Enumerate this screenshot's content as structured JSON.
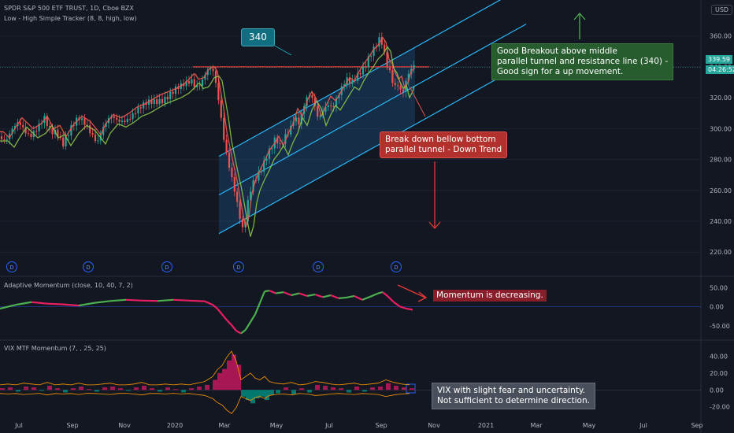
{
  "header": {
    "symbol_title": "SPDR S&P 500 ETF TRUST, 1D, Cboe BZX",
    "indicator": "Low - High Simple Tracker (8, 8, high, low)",
    "currency": "USD"
  },
  "chart_data": [
    {
      "type": "candlestick",
      "title": "SPDR S&P 500 ETF TRUST, 1D, Cboe BZX",
      "y_ticks": [
        220,
        240,
        260,
        280,
        300,
        320,
        340,
        360
      ],
      "ylim": [
        215,
        368
      ],
      "x_ticks": [
        "Jul",
        "Sep",
        "Nov",
        "2020",
        "Mar",
        "May",
        "Jul",
        "Sep",
        "Nov",
        "2021",
        "Mar",
        "May",
        "Jul",
        "Sep"
      ],
      "last_price": "339.59",
      "countdown": "04:26:52",
      "resistance_label": "340",
      "resistance_level": 340,
      "price_path": [
        [
          0,
          295
        ],
        [
          8,
          291
        ],
        [
          16,
          298
        ],
        [
          24,
          304
        ],
        [
          30,
          301
        ],
        [
          38,
          297
        ],
        [
          48,
          300
        ],
        [
          56,
          305
        ],
        [
          64,
          297
        ],
        [
          72,
          299
        ],
        [
          80,
          292
        ],
        [
          90,
          300
        ],
        [
          100,
          305
        ],
        [
          110,
          302
        ],
        [
          118,
          297
        ],
        [
          124,
          293
        ],
        [
          130,
          300
        ],
        [
          140,
          306
        ],
        [
          150,
          304
        ],
        [
          160,
          307
        ],
        [
          170,
          311
        ],
        [
          180,
          313
        ],
        [
          190,
          316
        ],
        [
          200,
          319
        ],
        [
          210,
          321
        ],
        [
          220,
          323
        ],
        [
          230,
          326
        ],
        [
          238,
          330
        ],
        [
          243,
          333
        ],
        [
          248,
          329
        ],
        [
          255,
          330
        ],
        [
          262,
          336
        ],
        [
          268,
          337
        ],
        [
          272,
          334
        ],
        [
          276,
          322
        ],
        [
          280,
          310
        ],
        [
          284,
          295
        ],
        [
          288,
          285
        ],
        [
          292,
          275
        ],
        [
          296,
          266
        ],
        [
          300,
          255
        ],
        [
          304,
          243
        ],
        [
          308,
          233
        ],
        [
          312,
          240
        ],
        [
          316,
          255
        ],
        [
          320,
          263
        ],
        [
          326,
          270
        ],
        [
          332,
          276
        ],
        [
          338,
          283
        ],
        [
          344,
          287
        ],
        [
          350,
          292
        ],
        [
          356,
          286
        ],
        [
          362,
          294
        ],
        [
          368,
          300
        ],
        [
          374,
          310
        ],
        [
          380,
          305
        ],
        [
          386,
          315
        ],
        [
          392,
          321
        ],
        [
          398,
          316
        ],
        [
          404,
          305
        ],
        [
          410,
          312
        ],
        [
          416,
          318
        ],
        [
          422,
          315
        ],
        [
          428,
          320
        ],
        [
          434,
          325
        ],
        [
          440,
          330
        ],
        [
          446,
          328
        ],
        [
          452,
          334
        ],
        [
          458,
          339
        ],
        [
          464,
          343
        ],
        [
          470,
          348
        ],
        [
          476,
          351
        ],
        [
          482,
          356
        ],
        [
          486,
          353
        ],
        [
          490,
          342
        ],
        [
          494,
          339
        ],
        [
          498,
          333
        ],
        [
          502,
          329
        ],
        [
          506,
          331
        ],
        [
          510,
          323
        ],
        [
          514,
          327
        ],
        [
          518,
          334
        ],
        [
          522,
          336
        ],
        [
          526,
          339.59
        ]
      ],
      "dividend_markers": [
        {
          "label": "D",
          "x": "Jun 2019"
        },
        {
          "label": "D",
          "x": "Sep 2019"
        },
        {
          "label": "D",
          "x": "Dec 2019"
        },
        {
          "label": "D",
          "x": "Mar 2020"
        },
        {
          "label": "D",
          "x": "Jun 2020"
        },
        {
          "label": "D",
          "x": "Sep 2020"
        }
      ],
      "colors": {
        "up": "#26a69a",
        "down": "#ef5350",
        "channel": "#2196f3",
        "high_line": "#f05a4f",
        "low_line": "#8bc34a",
        "resistance": "#e53935"
      }
    },
    {
      "type": "line",
      "title": "Adaptive Momentum (close, 10, 40, 7, 2)",
      "y_ticks": [
        -50,
        0,
        50
      ],
      "ylim": [
        -75,
        65
      ],
      "values": [
        [
          0,
          -5
        ],
        [
          20,
          5
        ],
        [
          40,
          12
        ],
        [
          60,
          8
        ],
        [
          80,
          6
        ],
        [
          100,
          3
        ],
        [
          120,
          10
        ],
        [
          140,
          15
        ],
        [
          160,
          18
        ],
        [
          180,
          16
        ],
        [
          200,
          15
        ],
        [
          220,
          18
        ],
        [
          240,
          16
        ],
        [
          260,
          14
        ],
        [
          270,
          5
        ],
        [
          276,
          -5
        ],
        [
          282,
          -20
        ],
        [
          288,
          -35
        ],
        [
          294,
          -48
        ],
        [
          300,
          -63
        ],
        [
          306,
          -70
        ],
        [
          312,
          -60
        ],
        [
          318,
          -40
        ],
        [
          324,
          -20
        ],
        [
          330,
          10
        ],
        [
          336,
          40
        ],
        [
          342,
          42
        ],
        [
          350,
          35
        ],
        [
          360,
          38
        ],
        [
          370,
          30
        ],
        [
          380,
          35
        ],
        [
          390,
          28
        ],
        [
          400,
          32
        ],
        [
          410,
          25
        ],
        [
          420,
          30
        ],
        [
          430,
          22
        ],
        [
          440,
          24
        ],
        [
          450,
          28
        ],
        [
          460,
          18
        ],
        [
          470,
          26
        ],
        [
          480,
          35
        ],
        [
          486,
          38
        ],
        [
          492,
          28
        ],
        [
          500,
          12
        ],
        [
          508,
          0
        ],
        [
          516,
          -5
        ],
        [
          524,
          -8
        ]
      ],
      "annotation": "Momentum is decreasing."
    },
    {
      "type": "bar",
      "title": "VIX MTF Momentum (7, , 25, 25)",
      "y_ticks": [
        -20,
        0,
        20,
        40
      ],
      "ylim": [
        -25,
        48
      ],
      "values": [
        [
          0,
          2
        ],
        [
          10,
          3
        ],
        [
          20,
          -2
        ],
        [
          30,
          4
        ],
        [
          40,
          3
        ],
        [
          50,
          -1
        ],
        [
          60,
          5
        ],
        [
          70,
          2
        ],
        [
          80,
          -3
        ],
        [
          90,
          2
        ],
        [
          100,
          4
        ],
        [
          110,
          1
        ],
        [
          120,
          -2
        ],
        [
          130,
          3
        ],
        [
          140,
          4
        ],
        [
          150,
          2
        ],
        [
          160,
          -1
        ],
        [
          170,
          3
        ],
        [
          180,
          5
        ],
        [
          190,
          2
        ],
        [
          200,
          -2
        ],
        [
          210,
          3
        ],
        [
          220,
          1
        ],
        [
          230,
          -3
        ],
        [
          240,
          2
        ],
        [
          250,
          4
        ],
        [
          260,
          6
        ],
        [
          270,
          12
        ],
        [
          276,
          20
        ],
        [
          282,
          25
        ],
        [
          288,
          35
        ],
        [
          294,
          42
        ],
        [
          300,
          30
        ],
        [
          306,
          -8
        ],
        [
          312,
          -12
        ],
        [
          318,
          -16
        ],
        [
          324,
          -10
        ],
        [
          330,
          -8
        ],
        [
          336,
          -12
        ],
        [
          342,
          -6
        ],
        [
          350,
          -4
        ],
        [
          360,
          3
        ],
        [
          370,
          -5
        ],
        [
          380,
          2
        ],
        [
          390,
          -3
        ],
        [
          400,
          6
        ],
        [
          410,
          5
        ],
        [
          420,
          3
        ],
        [
          430,
          2
        ],
        [
          440,
          -3
        ],
        [
          450,
          4
        ],
        [
          460,
          -2
        ],
        [
          470,
          3
        ],
        [
          480,
          4
        ],
        [
          490,
          8
        ],
        [
          500,
          5
        ],
        [
          510,
          3
        ],
        [
          520,
          2
        ]
      ],
      "colors": {
        "positive": "#c2185b",
        "negative": "#00897b",
        "band": "#ff9800"
      },
      "annotation": "VIX with slight fear and uncertainty. Not sufficient to determine direction."
    }
  ],
  "annotations": {
    "resistance_label": "340",
    "breakout": "Good Breakout above middle parallel tunnel and resistance line (340) - Good sign for a up movement.",
    "breakdown": "Break down bellow bottom parallel tunnel - Down Trend",
    "momentum": "Momentum is decreasing.",
    "vix": "VIX with slight fear and uncertainty. Not sufficient to determine direction."
  },
  "annotation_lines": {
    "breakout": [
      "Good Breakout above middle",
      "parallel tunnel and resistance line (340) -",
      "Good sign for a up movement."
    ],
    "breakdown": [
      "Break down bellow bottom",
      "parallel tunnel - Down Trend"
    ],
    "vix": [
      "VIX with slight fear and uncertainty.",
      "Not sufficient to determine direction."
    ]
  },
  "bottom_axis": [
    "Jul",
    "Sep",
    "Nov",
    "2020",
    "Mar",
    "May",
    "Jul",
    "Sep",
    "Nov",
    "2021",
    "Mar",
    "May",
    "Jul",
    "Sep"
  ]
}
